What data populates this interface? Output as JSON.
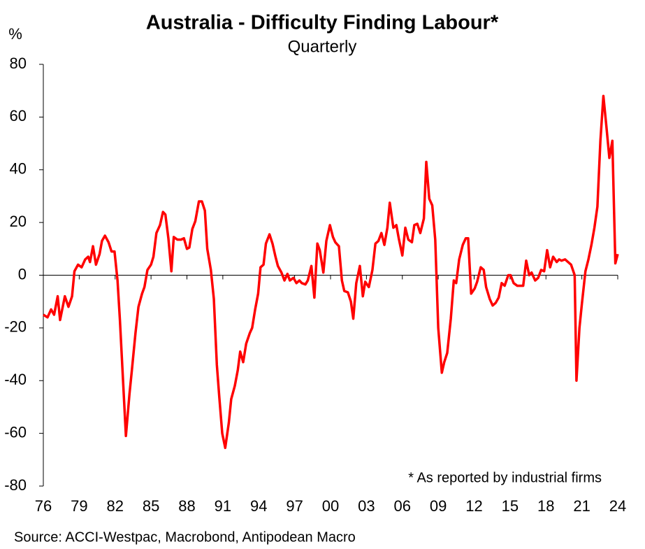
{
  "chart_data": {
    "type": "line",
    "title": "Australia - Difficulty Finding Labour*",
    "subtitle": "Quarterly",
    "y_label": "%",
    "annotation": "* As reported by industrial firms",
    "source": "Source: ACCI-Westpac, Macrobond, Antipodean Macro",
    "xlim": [
      1976,
      2024
    ],
    "xticks": [
      {
        "value": 1976,
        "label": "76"
      },
      {
        "value": 1979,
        "label": "79"
      },
      {
        "value": 1982,
        "label": "82"
      },
      {
        "value": 1985,
        "label": "85"
      },
      {
        "value": 1988,
        "label": "88"
      },
      {
        "value": 1991,
        "label": "91"
      },
      {
        "value": 1994,
        "label": "94"
      },
      {
        "value": 1997,
        "label": "97"
      },
      {
        "value": 2000,
        "label": "00"
      },
      {
        "value": 2003,
        "label": "03"
      },
      {
        "value": 2006,
        "label": "06"
      },
      {
        "value": 2009,
        "label": "09"
      },
      {
        "value": 2012,
        "label": "12"
      },
      {
        "value": 2015,
        "label": "15"
      },
      {
        "value": 2018,
        "label": "18"
      },
      {
        "value": 2021,
        "label": "21"
      },
      {
        "value": 2024,
        "label": "24"
      }
    ],
    "ylim": [
      -80,
      80
    ],
    "yticks": [
      -80,
      -60,
      -40,
      -20,
      0,
      20,
      40,
      60,
      80
    ],
    "x": [
      1976.0,
      1976.35,
      1976.65,
      1976.9,
      1977.2,
      1977.4,
      1977.8,
      1978.1,
      1978.4,
      1978.6,
      1978.9,
      1979.2,
      1979.5,
      1979.75,
      1979.9,
      1980.15,
      1980.4,
      1980.7,
      1980.9,
      1981.15,
      1981.45,
      1981.7,
      1981.95,
      1982.2,
      1982.4,
      1982.65,
      1982.9,
      1983.2,
      1983.4,
      1983.7,
      1983.95,
      1984.25,
      1984.45,
      1984.7,
      1985.0,
      1985.2,
      1985.45,
      1985.75,
      1986.0,
      1986.2,
      1986.45,
      1986.7,
      1986.9,
      1987.2,
      1987.5,
      1987.75,
      1988.0,
      1988.2,
      1988.45,
      1988.7,
      1989.0,
      1989.25,
      1989.5,
      1989.7,
      1990.0,
      1990.25,
      1990.5,
      1990.7,
      1990.95,
      1991.2,
      1991.5,
      1991.7,
      1992.0,
      1992.25,
      1992.45,
      1992.7,
      1992.95,
      1993.25,
      1993.45,
      1993.7,
      1993.95,
      1994.15,
      1994.4,
      1994.6,
      1994.9,
      1995.15,
      1995.4,
      1995.6,
      1995.9,
      1996.15,
      1996.4,
      1996.6,
      1996.9,
      1997.15,
      1997.4,
      1997.6,
      1997.9,
      1998.1,
      1998.4,
      1998.65,
      1998.9,
      1999.1,
      1999.4,
      1999.65,
      1999.95,
      2000.2,
      2000.4,
      2000.7,
      2000.95,
      2001.15,
      2001.45,
      2001.7,
      2001.9,
      2002.15,
      2002.45,
      2002.7,
      2002.9,
      2003.2,
      2003.5,
      2003.75,
      2004.0,
      2004.25,
      2004.5,
      2004.75,
      2004.95,
      2005.25,
      2005.5,
      2005.7,
      2006.0,
      2006.25,
      2006.5,
      2006.8,
      2007.0,
      2007.25,
      2007.5,
      2007.8,
      2008.0,
      2008.25,
      2008.5,
      2008.75,
      2009.0,
      2009.3,
      2009.5,
      2009.75,
      2010.05,
      2010.3,
      2010.5,
      2010.75,
      2011.05,
      2011.3,
      2011.5,
      2011.75,
      2012.05,
      2012.25,
      2012.55,
      2012.8,
      2013.0,
      2013.3,
      2013.55,
      2013.8,
      2014.05,
      2014.3,
      2014.55,
      2014.85,
      2015.05,
      2015.3,
      2015.6,
      2015.8,
      2016.1,
      2016.35,
      2016.6,
      2016.8,
      2017.1,
      2017.35,
      2017.6,
      2017.85,
      2018.1,
      2018.35,
      2018.6,
      2018.9,
      2019.1,
      2019.3,
      2019.6,
      2019.85,
      2020.1,
      2020.4,
      2020.55,
      2020.8,
      2021.0,
      2021.3,
      2021.55,
      2021.8,
      2022.05,
      2022.3,
      2022.55,
      2022.8,
      2023.05,
      2023.3,
      2023.55,
      2023.8,
      2024.0
    ],
    "series": [
      {
        "name": "Difficulty finding labour",
        "color": "#ff0000",
        "values": [
          -15,
          -16,
          -13,
          -15,
          -8,
          -17,
          -8,
          -12,
          -8,
          1.5,
          4,
          3,
          6,
          7,
          5,
          11,
          4,
          8,
          13,
          15,
          12.5,
          9,
          9,
          -2,
          -17,
          -39,
          -61,
          -45,
          -36,
          -22,
          -12,
          -7,
          -4.5,
          2,
          4,
          7,
          16,
          19,
          24,
          23,
          14,
          1.5,
          14.5,
          13.5,
          13.5,
          14,
          10,
          10.5,
          17.5,
          20.5,
          28,
          28,
          24.5,
          10,
          2,
          -9,
          -34,
          -46,
          -60,
          -65.5,
          -56,
          -47,
          -42,
          -36,
          -29,
          -33,
          -26,
          -22,
          -20,
          -13,
          -7,
          3,
          4,
          12,
          15.5,
          12,
          7,
          3.5,
          1,
          -2,
          0.5,
          -2,
          -1,
          -3,
          -2,
          -3,
          -3.5,
          -2,
          3.5,
          -8.5,
          12,
          9.5,
          1,
          13,
          19,
          14.5,
          12.5,
          11,
          -2,
          -6,
          -6.5,
          -10,
          -16.5,
          -3,
          3.5,
          -8,
          -2.5,
          -4.5,
          2,
          12,
          13,
          16,
          11.5,
          18,
          27.5,
          18,
          19,
          14,
          7.5,
          18,
          13.5,
          12.5,
          19,
          19.5,
          16,
          21.5,
          43,
          29,
          26.5,
          13.5,
          -20,
          -37,
          -33,
          -29.5,
          -16.5,
          -2,
          -3,
          6,
          11.5,
          14,
          14,
          -7,
          -5,
          -2.5,
          3,
          2,
          -4.5,
          -9,
          -11.5,
          -10.5,
          -8.5,
          -3,
          -4,
          0,
          0,
          -3,
          -4,
          -4,
          -4,
          5.5,
          0,
          1,
          -2,
          -1,
          2,
          1.5,
          9.5,
          3,
          7,
          5,
          6,
          5.5,
          6,
          5,
          4,
          0,
          -40,
          -20,
          -11,
          1.5,
          6,
          11.5,
          18,
          26,
          51,
          68,
          56.5,
          44.5,
          51,
          4.5,
          8
        ]
      }
    ]
  }
}
